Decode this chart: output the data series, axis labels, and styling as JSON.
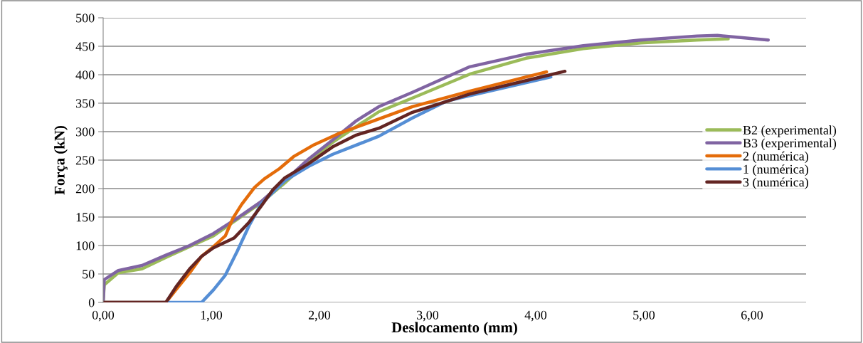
{
  "chart_data": {
    "type": "line",
    "xlabel": "Deslocamento (mm)",
    "ylabel": "Força (kN)",
    "xlim": [
      0,
      6.5
    ],
    "ylim": [
      0,
      500
    ],
    "xticks": [
      {
        "value": 0,
        "label": "0,00"
      },
      {
        "value": 1,
        "label": "1,00"
      },
      {
        "value": 2,
        "label": "2,00"
      },
      {
        "value": 3,
        "label": "3,00"
      },
      {
        "value": 4,
        "label": "4,00"
      },
      {
        "value": 5,
        "label": "5,00"
      },
      {
        "value": 6,
        "label": "6,00"
      }
    ],
    "yticks": [
      0,
      50,
      100,
      150,
      200,
      250,
      300,
      350,
      400,
      450,
      500
    ],
    "grid": "y",
    "legend": "right",
    "marker": "none",
    "line_style": "solid",
    "series": [
      {
        "name": "B2 (experimental)",
        "color": "#9bbb59",
        "x": [
          0,
          0.01,
          0.14,
          0.36,
          0.58,
          0.8,
          1.02,
          1.24,
          1.46,
          1.68,
          1.9,
          2.12,
          2.34,
          2.55,
          2.86,
          3.39,
          3.91,
          4.44,
          4.97,
          5.49,
          5.78
        ],
        "values": [
          0,
          31,
          52,
          59,
          79,
          98,
          117,
          146,
          175,
          210,
          248,
          281,
          309,
          335,
          359,
          401,
          429,
          446,
          456,
          461,
          463
        ]
      },
      {
        "name": "B3 (experimental)",
        "color": "#8064a2",
        "x": [
          0,
          0.01,
          0.14,
          0.36,
          0.58,
          0.8,
          1.02,
          1.24,
          1.46,
          1.68,
          1.9,
          2.12,
          2.34,
          2.55,
          2.86,
          3.39,
          3.91,
          4.44,
          4.97,
          5.49,
          5.68,
          6.15
        ],
        "values": [
          0,
          40,
          56,
          65,
          83,
          100,
          121,
          148,
          177,
          214,
          252,
          285,
          319,
          344,
          369,
          414,
          436,
          451,
          461,
          468,
          469,
          461
        ]
      },
      {
        "name": "2 (numérica)",
        "color": "#e46c0a",
        "x": [
          0,
          0.58,
          0.68,
          0.8,
          0.91,
          1.02,
          1.13,
          1.2,
          1.28,
          1.4,
          1.49,
          1.63,
          1.76,
          1.95,
          2.17,
          2.5,
          2.86,
          3.39,
          4.1
        ],
        "values": [
          0,
          0,
          24,
          52,
          81,
          98,
          117,
          148,
          172,
          202,
          217,
          235,
          256,
          277,
          296,
          319,
          344,
          371,
          405
        ]
      },
      {
        "name": "1 (numérica)",
        "color": "#558ed5",
        "x": [
          0,
          0.91,
          1.02,
          1.13,
          1.24,
          1.35,
          1.46,
          1.68,
          1.9,
          2.12,
          2.55,
          2.86,
          3.18,
          4.14
        ],
        "values": [
          0,
          0,
          22,
          48,
          90,
          135,
          173,
          214,
          239,
          260,
          292,
          324,
          354,
          396
        ]
      },
      {
        "name": "3 (numérica)",
        "color": "#632523",
        "x": [
          0,
          0.58,
          0.68,
          0.8,
          0.91,
          1.02,
          1.13,
          1.21,
          1.35,
          1.46,
          1.57,
          1.68,
          1.9,
          2.12,
          2.34,
          2.55,
          2.86,
          3.39,
          4.27
        ],
        "values": [
          0,
          0,
          29,
          59,
          81,
          96,
          106,
          113,
          141,
          169,
          198,
          219,
          244,
          273,
          294,
          306,
          334,
          366,
          406
        ]
      }
    ]
  }
}
